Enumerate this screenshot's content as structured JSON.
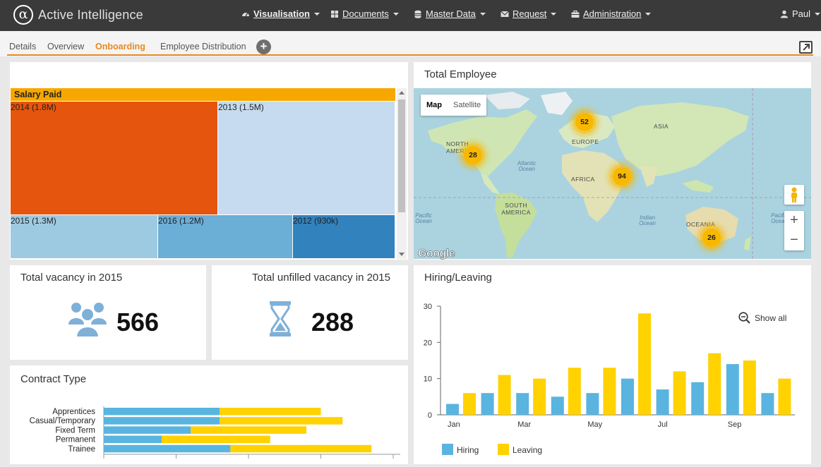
{
  "app": {
    "brand": "Active Intelligence",
    "logo_glyph": "α"
  },
  "nav": {
    "items": [
      {
        "label": "Visualisation",
        "icon": "dashboard-icon"
      },
      {
        "label": "Documents",
        "icon": "grid-icon"
      },
      {
        "label": "Master Data",
        "icon": "database-icon"
      },
      {
        "label": "Request",
        "icon": "envelope-icon"
      },
      {
        "label": "Administration",
        "icon": "briefcase-icon"
      }
    ],
    "user": "Paul"
  },
  "tabs": [
    "Details",
    "Overview",
    "Onboarding",
    "Employee Distribution"
  ],
  "active_tab": "Onboarding",
  "tab_add_glyph": "+",
  "treemap": {
    "header": "Salary Paid",
    "cells": [
      {
        "label": "2014 (1.8M)",
        "color": "#e6550d"
      },
      {
        "label": "2013 (1.5M)",
        "color": "#c6dbef"
      },
      {
        "label": "2015 (1.3M)",
        "color": "#9ecae1"
      },
      {
        "label": "2016 (1.2M)",
        "color": "#6baed6"
      },
      {
        "label": "2012 (930k)",
        "color": "#3182bd"
      }
    ]
  },
  "map_panel": {
    "title": "Total Employee",
    "map_type": [
      "Map",
      "Satellite"
    ],
    "continents": [
      "NORTH AMERICA",
      "EUROPE",
      "ASIA",
      "AFRICA",
      "SOUTH AMERICA",
      "OCEANIA"
    ],
    "oceans": [
      "Atlantic Ocean",
      "Pacific Ocean",
      "Indian Ocean",
      "Pacific Ocean"
    ],
    "clusters": [
      {
        "region": "Europe",
        "count": "52"
      },
      {
        "region": "North America",
        "count": "28"
      },
      {
        "region": "Asia",
        "count": "94"
      },
      {
        "region": "Oceania",
        "count": "26"
      }
    ],
    "zoom_in": "+",
    "zoom_out": "−",
    "attribution": "Google"
  },
  "kpi_vacancy": {
    "title": "Total vacancy in 2015",
    "value": "566",
    "icon": "users-icon"
  },
  "kpi_unfilled": {
    "title": "Total unfilled vacancy in 2015",
    "value": "288",
    "icon": "hourglass-icon"
  },
  "contract": {
    "title": "Contract Type",
    "chart_data": {
      "type": "bar",
      "orientation": "horizontal",
      "stacked": true,
      "categories": [
        "Apprentices",
        "Casual/Temporary",
        "Fixed Term",
        "Permanent",
        "Trainee"
      ],
      "series": [
        {
          "values": [
            16,
            16,
            12,
            8,
            17.5
          ],
          "color": "#5ab4e0"
        },
        {
          "values": [
            14,
            17,
            16,
            15,
            19.5
          ],
          "color": "#ffd200"
        }
      ],
      "xlim": [
        0,
        40
      ]
    }
  },
  "hiring": {
    "title": "Hiring/Leaving",
    "show_all": "Show all",
    "chart_data": {
      "type": "bar",
      "months": [
        "Jan",
        "Feb",
        "Mar",
        "Apr",
        "May",
        "Jun",
        "Jul",
        "Aug",
        "Sep",
        "Oct"
      ],
      "tick_labels": [
        "Jan",
        "Mar",
        "May",
        "Jul",
        "Sep"
      ],
      "series": [
        {
          "name": "Hiring",
          "values": [
            3,
            6,
            6,
            5,
            6,
            10,
            7,
            9,
            14,
            6
          ],
          "color": "#5ab4e0"
        },
        {
          "name": "Leaving",
          "values": [
            6,
            11,
            10,
            13,
            13,
            28,
            12,
            17,
            15,
            10
          ],
          "color": "#ffd200"
        }
      ],
      "yticks": [
        "0",
        "10",
        "20",
        "30"
      ],
      "ylim": [
        0,
        30
      ],
      "legend": "bottom-left"
    }
  }
}
